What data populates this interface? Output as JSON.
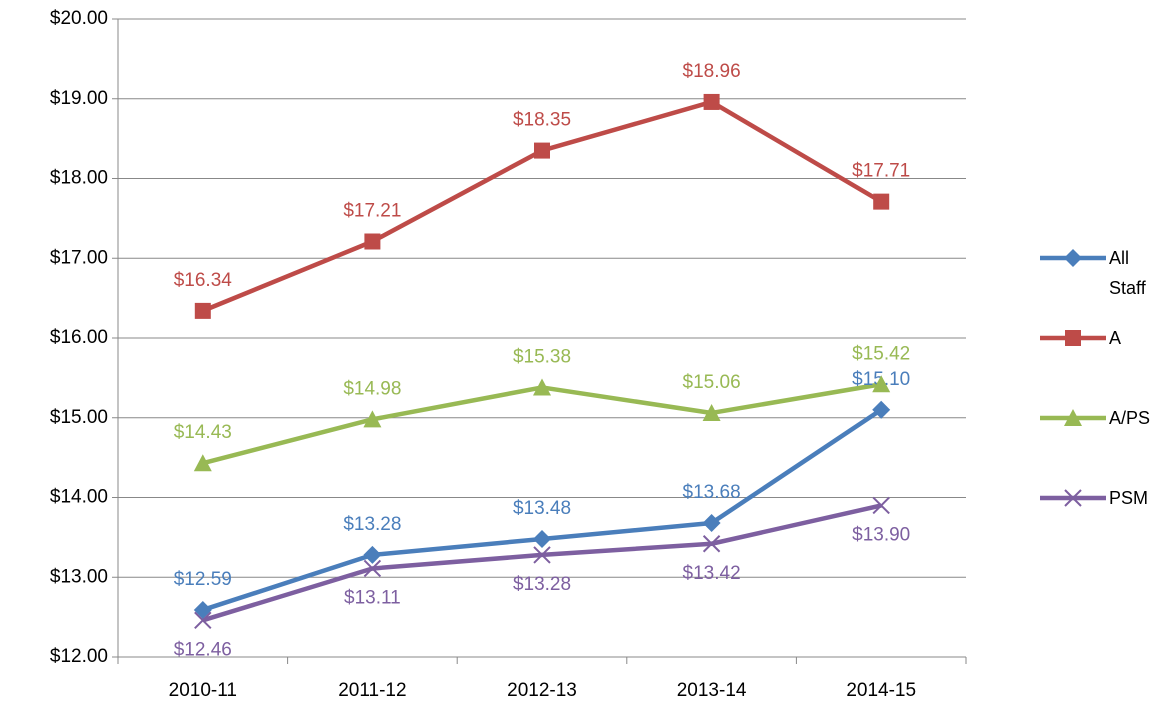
{
  "chart_data": {
    "type": "line",
    "categories": [
      "2010-11",
      "2011-12",
      "2012-13",
      "2013-14",
      "2014-15"
    ],
    "series": [
      {
        "name": "All Staff",
        "color": "#4a7ebb",
        "marker": "diamond",
        "values": [
          12.59,
          13.28,
          13.48,
          13.68,
          15.1
        ],
        "value_labels": [
          "$12.59",
          "$13.28",
          "$13.48",
          "$13.68",
          "$15.10"
        ]
      },
      {
        "name": "A",
        "color": "#be4b48",
        "marker": "square",
        "values": [
          16.34,
          17.21,
          18.35,
          18.96,
          17.71
        ],
        "value_labels": [
          "$16.34",
          "$17.21",
          "$18.35",
          "$18.96",
          "$17.71"
        ]
      },
      {
        "name": "A/PS",
        "color": "#98b954",
        "marker": "triangle",
        "values": [
          14.43,
          14.98,
          15.38,
          15.06,
          15.42
        ],
        "value_labels": [
          "$14.43",
          "$14.98",
          "$15.38",
          "$15.06",
          "$15.42"
        ]
      },
      {
        "name": "PSM",
        "color": "#7d5fa0",
        "marker": "x",
        "values": [
          12.46,
          13.11,
          13.28,
          13.42,
          13.9
        ],
        "value_labels": [
          "$12.46",
          "$13.11",
          "$13.28",
          "$13.42",
          "$13.90"
        ]
      }
    ],
    "ylim": [
      12,
      20
    ],
    "yticks": [
      {
        "value": 12,
        "label": "$12.00"
      },
      {
        "value": 13,
        "label": "$13.00"
      },
      {
        "value": 14,
        "label": "$14.00"
      },
      {
        "value": 15,
        "label": "$15.00"
      },
      {
        "value": 16,
        "label": "$16.00"
      },
      {
        "value": 17,
        "label": "$17.00"
      },
      {
        "value": 18,
        "label": "$18.00"
      },
      {
        "value": 19,
        "label": "$19.00"
      },
      {
        "value": 20,
        "label": "$20.00"
      }
    ],
    "grid": true,
    "legend": "right"
  }
}
